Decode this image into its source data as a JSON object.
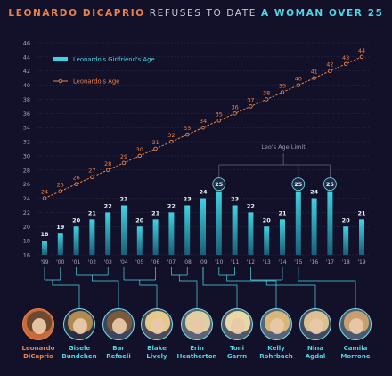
{
  "title": {
    "part1": "LEONARDO DICAPRIO",
    "part2": " REFUSES TO DATE ",
    "part3": "A WOMAN OVER 25"
  },
  "legend": {
    "girlfriend": "Leonardo's Girlfriend's Age",
    "leo": "Leonardo's Age"
  },
  "annotation": "Leo's Age Limit",
  "colors": {
    "orange": "#e8834b",
    "cyan": "#4fd6e4",
    "background": "#13102a",
    "grid": "#3a3560"
  },
  "chart_data": {
    "type": "bar+line",
    "categories": [
      "'99",
      "'00",
      "'01",
      "'02",
      "'03",
      "'04",
      "'05",
      "'06",
      "'07",
      "'08",
      "'09",
      "'10",
      "'11",
      "'12",
      "'13",
      "'14",
      "'15",
      "'16",
      "'17",
      "'18",
      "'19"
    ],
    "series": [
      {
        "name": "Leonardo's Girlfriend's Age",
        "type": "bar",
        "values": [
          18,
          19,
          20,
          21,
          22,
          23,
          20,
          21,
          22,
          23,
          24,
          25,
          23,
          22,
          20,
          21,
          25,
          24,
          25,
          20,
          21
        ]
      },
      {
        "name": "Leonardo's Age",
        "type": "line",
        "values": [
          24,
          25,
          26,
          27,
          28,
          29,
          30,
          31,
          32,
          33,
          34,
          35,
          36,
          37,
          38,
          39,
          40,
          41,
          42,
          43,
          44
        ]
      }
    ],
    "y_ticks": [
      16,
      18,
      20,
      22,
      24,
      26,
      28,
      30,
      32,
      34,
      36,
      38,
      40,
      42,
      44,
      46
    ],
    "ylim": [
      16,
      46
    ],
    "highlight_value": 25,
    "grid": true,
    "legend_position": "top-left"
  },
  "people": [
    {
      "name": "Leonardo\nDiCaprio",
      "hair": "#6b4a30",
      "bg": "#c86a3a",
      "leo": true
    },
    {
      "name": "Gisele\nBundchen",
      "hair": "#b08a50",
      "bg": "#2a2e40"
    },
    {
      "name": "Bar\nRefaeli",
      "hair": "#7a5a3a",
      "bg": "#3c4660"
    },
    {
      "name": "Blake\nLively",
      "hair": "#e3c98a",
      "bg": "#4a4a5a"
    },
    {
      "name": "Erin\nHeatherton",
      "hair": "#e0cfa0",
      "bg": "#5a6478"
    },
    {
      "name": "Toni\nGarrn",
      "hair": "#e8d8a8",
      "bg": "#4e5866"
    },
    {
      "name": "Kelly\nRohrbach",
      "hair": "#d8b878",
      "bg": "#56647a"
    },
    {
      "name": "Nina\nAgdal",
      "hair": "#dcc090",
      "bg": "#3e4c62"
    },
    {
      "name": "Camila\nMorrone",
      "hair": "#c8a070",
      "bg": "#4a5a70"
    }
  ]
}
